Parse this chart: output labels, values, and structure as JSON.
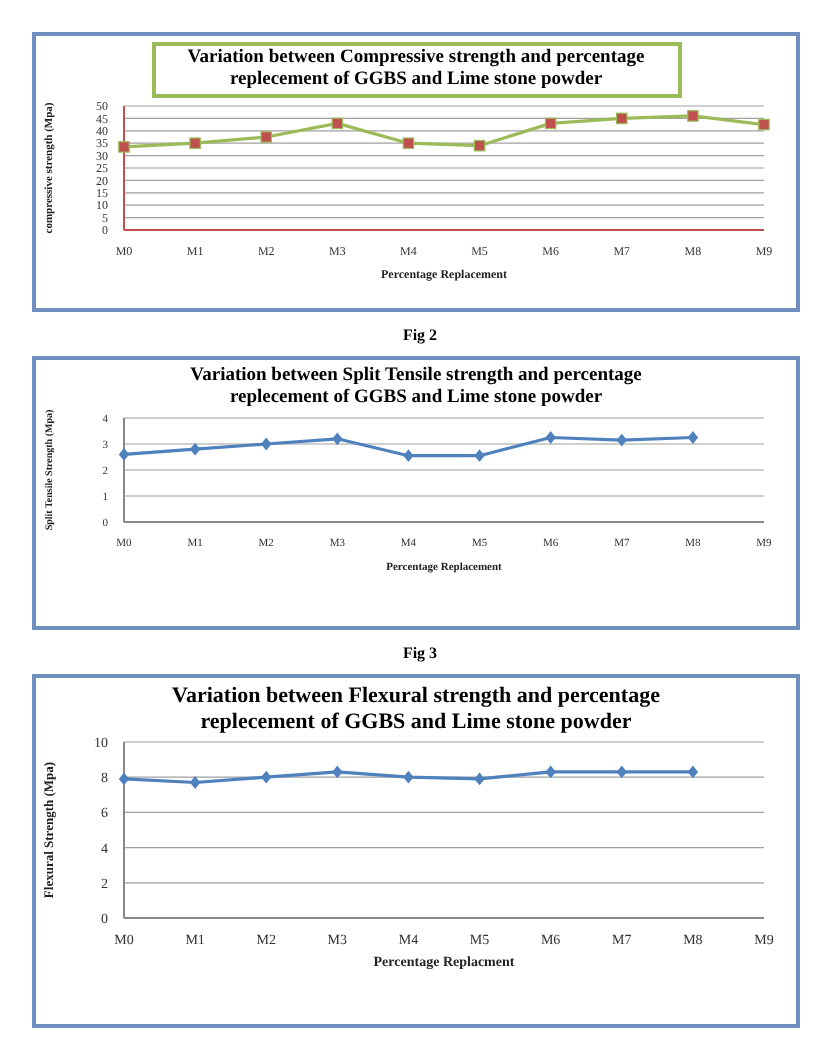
{
  "chart_data": [
    {
      "type": "line",
      "title": "Variation between Compressive strength and percentage replecement of GGBS and Lime stone powder",
      "xlabel": "Percentage Replacement",
      "ylabel": "compressive strength (Mpa)",
      "categories": [
        "M0",
        "M1",
        "M2",
        "M3",
        "M4",
        "M5",
        "M6",
        "M7",
        "M8",
        "M9"
      ],
      "series": [
        {
          "color": "#9bbb59",
          "values": [
            33.5,
            35,
            37.5,
            43,
            35,
            34,
            43,
            45,
            46,
            42.5
          ]
        }
      ],
      "ylim": [
        0,
        50
      ],
      "yticks": [
        0,
        5,
        10,
        15,
        20,
        25,
        30,
        35,
        40,
        45,
        50
      ],
      "grid": "y",
      "marker": "square",
      "legend": false
    },
    {
      "type": "line",
      "title": "Variation between Split Tensile strength and percentage replecement of GGBS and Lime stone powder",
      "annotations": [
        "Fig 2"
      ],
      "xlabel": "Percentage Replacement",
      "ylabel": "Split Tensile Strength (Mpa)",
      "categories": [
        "M0",
        "M1",
        "M2",
        "M3",
        "M4",
        "M5",
        "M6",
        "M7",
        "M8",
        "M9"
      ],
      "series": [
        {
          "color": "#4f81bd",
          "values": [
            2.6,
            2.8,
            3.0,
            3.2,
            2.55,
            2.55,
            3.25,
            3.15,
            3.25,
            null
          ]
        }
      ],
      "ylim": [
        0,
        4
      ],
      "yticks": [
        0,
        1,
        2,
        3,
        4
      ],
      "grid": "y",
      "marker": "diamond",
      "legend": false
    },
    {
      "type": "line",
      "title": "Variation between Flexural strength and percentage replecement of GGBS and Lime stone powder",
      "annotations": [
        "Fig 3"
      ],
      "xlabel": "Percentage Replacment",
      "ylabel": "Flexural Strength (Mpa)",
      "categories": [
        "M0",
        "M1",
        "M2",
        "M3",
        "M4",
        "M5",
        "M6",
        "M7",
        "M8",
        "M9"
      ],
      "series": [
        {
          "color": "#4f81bd",
          "values": [
            7.9,
            7.7,
            8.0,
            8.3,
            8.0,
            7.9,
            8.3,
            8.3,
            8.3,
            null
          ]
        }
      ],
      "ylim": [
        0,
        10
      ],
      "yticks": [
        0,
        2,
        4,
        6,
        8,
        10
      ],
      "grid": "y",
      "marker": "diamond",
      "legend": false
    }
  ]
}
